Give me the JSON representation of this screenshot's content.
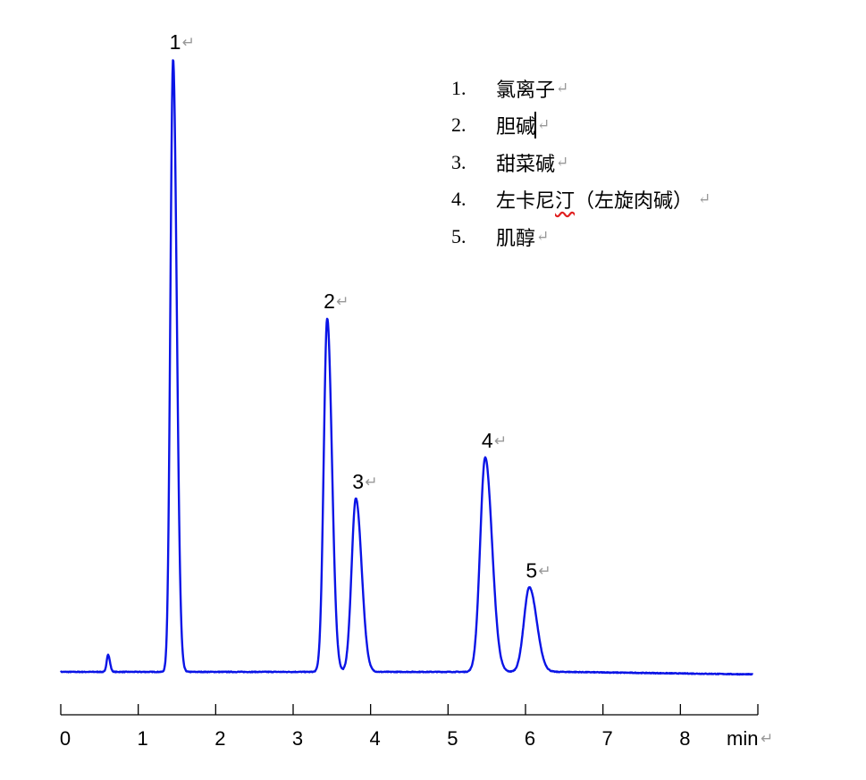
{
  "chart_data": {
    "type": "line",
    "title": "",
    "xlabel": "min",
    "ylabel": "",
    "xlim": [
      0,
      9
    ],
    "x_ticks": [
      "0",
      "1",
      "2",
      "3",
      "4",
      "5",
      "6",
      "7",
      "8"
    ],
    "y_axis_shown": false,
    "grid": false,
    "line_color": "#0a14e6",
    "baseline_drift_end": -0.4,
    "peaks": [
      {
        "label": "",
        "rt": 0.61,
        "height": 2.8,
        "width": 0.018
      },
      {
        "label": "1",
        "rt": 1.45,
        "height": 100,
        "width": 0.035
      },
      {
        "label": "2",
        "rt": 3.44,
        "height": 57.7,
        "width": 0.045
      },
      {
        "label": "3",
        "rt": 3.81,
        "height": 28.3,
        "width": 0.055
      },
      {
        "label": "4",
        "rt": 5.48,
        "height": 35.0,
        "width": 0.065
      },
      {
        "label": "5",
        "rt": 6.05,
        "height": 13.8,
        "width": 0.07
      }
    ]
  },
  "legend": {
    "items": [
      {
        "num": "1.",
        "name": "氯离子"
      },
      {
        "num": "2.",
        "name": "胆碱"
      },
      {
        "num": "3.",
        "name": "甜菜碱"
      },
      {
        "num": "4.",
        "name_a": "左卡尼",
        "name_b": "汀",
        "name_c": "（左旋肉碱）"
      },
      {
        "num": "5.",
        "name": "肌醇"
      }
    ]
  },
  "paragraph_mark": "↵"
}
